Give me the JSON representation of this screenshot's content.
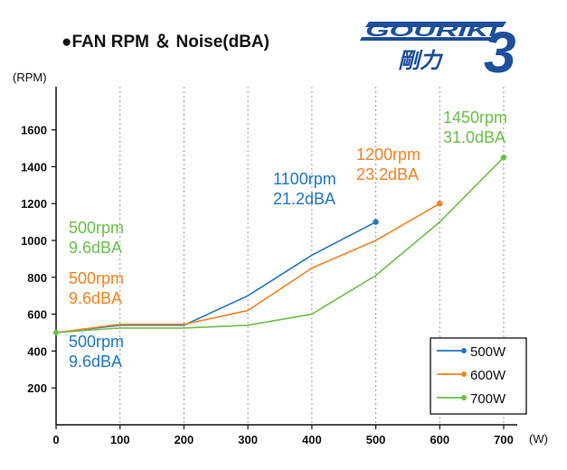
{
  "chart_data": {
    "type": "line",
    "title": "●FAN RPM ＆ Noise(dBA)",
    "ylabel": "(RPM)",
    "xlabel": "(W)",
    "xlim": [
      0,
      700
    ],
    "ylim": [
      0,
      1750
    ],
    "x_ticks": [
      0,
      100,
      200,
      300,
      400,
      500,
      600,
      700
    ],
    "y_ticks": [
      200,
      400,
      600,
      800,
      1000,
      1200,
      1400,
      1600
    ],
    "grid": "vertical dotted",
    "legend_position": "bottom-right",
    "series": [
      {
        "name": "500W",
        "color": "#1f77c4",
        "x": [
          0,
          100,
          200,
          300,
          400,
          500
        ],
        "y": [
          500,
          540,
          540,
          700,
          920,
          1100
        ],
        "end_marker": true
      },
      {
        "name": "600W",
        "color": "#f58220",
        "x": [
          0,
          100,
          200,
          300,
          400,
          500,
          600
        ],
        "y": [
          500,
          545,
          545,
          620,
          850,
          1000,
          1200
        ],
        "end_marker": true
      },
      {
        "name": "700W",
        "color": "#6cc04a",
        "x": [
          0,
          100,
          200,
          300,
          400,
          500,
          600,
          700
        ],
        "y": [
          500,
          525,
          525,
          540,
          600,
          810,
          1100,
          1450
        ],
        "end_marker": true
      }
    ],
    "annotations": [
      {
        "lines": [
          "500rpm",
          "9.6dBA"
        ],
        "color": "#6cc04a",
        "at": [
          0,
          1000
        ]
      },
      {
        "lines": [
          "500rpm",
          "9.6dBA"
        ],
        "color": "#f58220",
        "at": [
          0,
          800
        ]
      },
      {
        "lines": [
          "500rpm",
          "9.6dBA"
        ],
        "color": "#1f77c4",
        "at": [
          0,
          400
        ]
      },
      {
        "lines": [
          "1100rpm",
          "21.2dBA"
        ],
        "color": "#1f77c4",
        "at": [
          500,
          1130
        ]
      },
      {
        "lines": [
          "1200rpm",
          "23.2dBA"
        ],
        "color": "#f58220",
        "at": [
          600,
          1230
        ]
      },
      {
        "lines": [
          "1450rpm",
          "31.0dBA"
        ],
        "color": "#6cc04a",
        "at": [
          700,
          1470
        ]
      }
    ]
  },
  "logo": {
    "text": "GOURIKI",
    "kanji": "剛力",
    "number": "3",
    "color": "#1d4f9c"
  }
}
